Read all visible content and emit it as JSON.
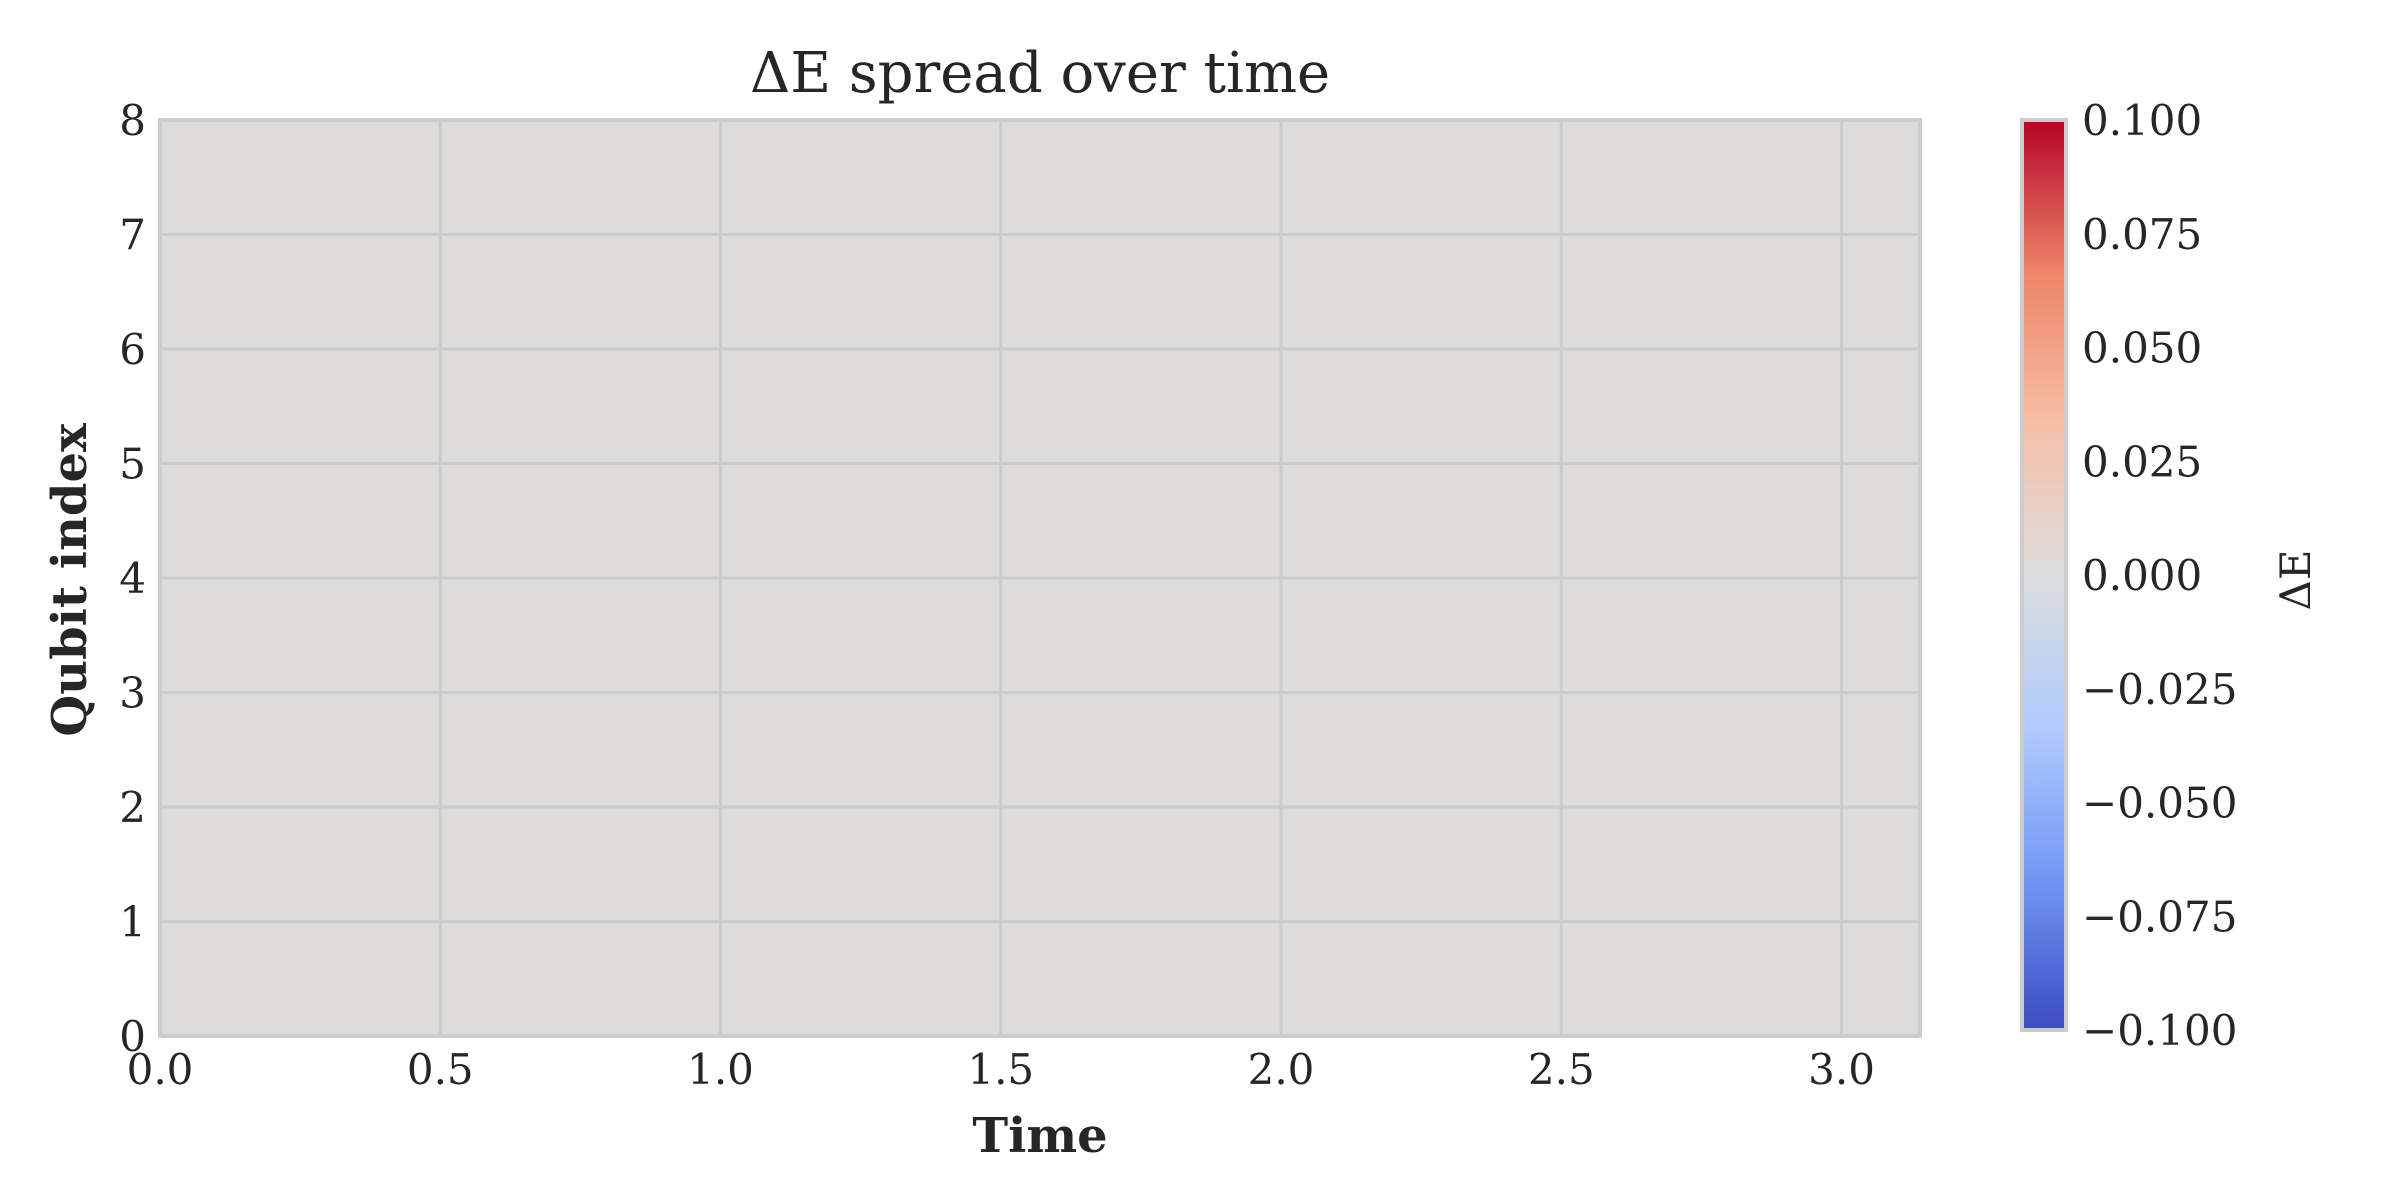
{
  "chart_data": {
    "type": "heatmap",
    "title": "ΔE spread over time",
    "xlabel": "Time",
    "ylabel": "Qubit index",
    "xlim": [
      0,
      3.14
    ],
    "ylim": [
      0,
      8
    ],
    "x_ticks": [
      0.0,
      0.5,
      1.0,
      1.5,
      2.0,
      2.5,
      3.0
    ],
    "x_tick_labels": [
      "0.0",
      "0.5",
      "1.0",
      "1.5",
      "2.0",
      "2.5",
      "3.0"
    ],
    "y_ticks": [
      0,
      1,
      2,
      3,
      4,
      5,
      6,
      7,
      8
    ],
    "y_tick_labels": [
      "0",
      "1",
      "2",
      "3",
      "4",
      "5",
      "6",
      "7",
      "8"
    ],
    "grid": true,
    "values_uniform": 0.0,
    "colorbar": {
      "label": "ΔE",
      "colormap": "coolwarm",
      "range": [
        -0.1,
        0.1
      ],
      "ticks": [
        0.1,
        0.075,
        0.05,
        0.025,
        0.0,
        -0.025,
        -0.05,
        -0.075,
        -0.1
      ],
      "tick_labels": [
        "0.100",
        "0.075",
        "0.050",
        "0.025",
        "0.000",
        "−0.025",
        "−0.050",
        "−0.075",
        "−0.100"
      ],
      "colors": [
        "#3b4cc0",
        "#7396f5",
        "#b0cbfc",
        "#dcdddd",
        "#f6bfa6",
        "#ee8468",
        "#b40426"
      ]
    },
    "heatmap_fill_color": "#dddcdb"
  }
}
